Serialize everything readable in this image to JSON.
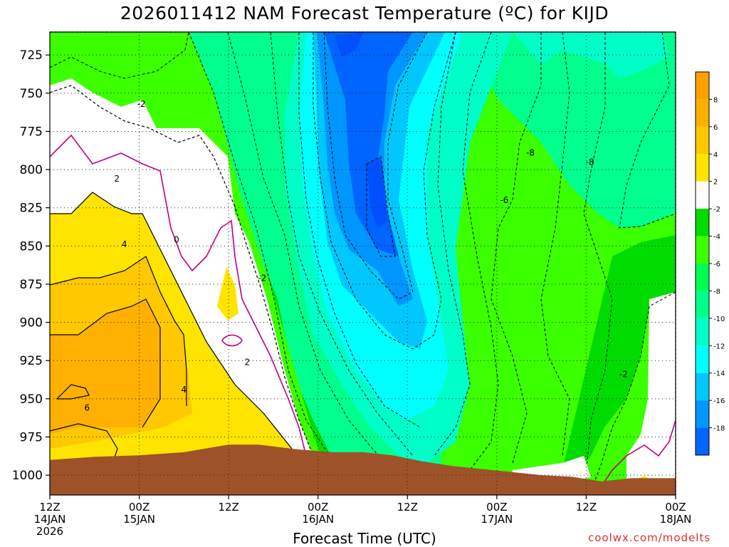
{
  "title": "2026011412 NAM Forecast Temperature (ºC) for KIJD",
  "credit": "coolwx.com/modelts",
  "chart_data": {
    "type": "heatmap",
    "title": "2026011412 NAM Forecast Temperature (ºC) for KIJD",
    "xlabel": "Forecast Time (UTC)",
    "ylabel": "",
    "y_axis": {
      "label": "",
      "ticks": [
        725,
        750,
        775,
        800,
        825,
        850,
        875,
        900,
        925,
        950,
        975,
        1000
      ],
      "range": [
        1013,
        710
      ],
      "inverted": true
    },
    "x_axis": {
      "ticks": [
        {
          "top": "12Z",
          "mid": "14JAN",
          "bottom": "2026"
        },
        {
          "top": "00Z",
          "mid": "15JAN",
          "bottom": ""
        },
        {
          "top": "12Z",
          "mid": "",
          "bottom": ""
        },
        {
          "top": "00Z",
          "mid": "16JAN",
          "bottom": ""
        },
        {
          "top": "12Z",
          "mid": "",
          "bottom": ""
        },
        {
          "top": "00Z",
          "mid": "17JAN",
          "bottom": ""
        },
        {
          "top": "12Z",
          "mid": "",
          "bottom": ""
        },
        {
          "top": "00Z",
          "mid": "18JAN",
          "bottom": ""
        }
      ],
      "range_hours": [
        0,
        84
      ]
    },
    "grid": true,
    "colorbar": {
      "levels": [
        8,
        6,
        4,
        2,
        -2,
        -4,
        -6,
        -8,
        -10,
        -12,
        -14,
        -16,
        -18
      ],
      "colors": [
        "#ffa000",
        "#ffb000",
        "#ffc800",
        "#ffe400",
        "#ffffff",
        "#00dc00",
        "#3cff00",
        "#00ff50",
        "#00ff8c",
        "#00ffc8",
        "#00ffff",
        "#00c8ff",
        "#0096ff",
        "#0064ff"
      ]
    },
    "contour_labels": [
      {
        "text": "-2",
        "hour": 12.3,
        "pressure": 757
      },
      {
        "text": "2",
        "hour": 9.0,
        "pressure": 806
      },
      {
        "text": "0",
        "hour": 17.0,
        "pressure": 846
      },
      {
        "text": "4",
        "hour": 10.0,
        "pressure": 849
      },
      {
        "text": "-2",
        "hour": 28.5,
        "pressure": 871
      },
      {
        "text": "2",
        "hour": 26.5,
        "pressure": 926
      },
      {
        "text": "4",
        "hour": 18.0,
        "pressure": 944
      },
      {
        "text": "6",
        "hour": 5.0,
        "pressure": 956
      },
      {
        "text": "-8",
        "hour": 64.5,
        "pressure": 789
      },
      {
        "text": "-8",
        "hour": 72.5,
        "pressure": 795
      },
      {
        "text": "-6",
        "hour": 61.0,
        "pressure": 820
      },
      {
        "text": "-2",
        "hour": 77.0,
        "pressure": 934
      }
    ],
    "terrain": {
      "color": "#9e5229",
      "surface_pressure": [
        {
          "hour": 0,
          "pressure": 990
        },
        {
          "hour": 6,
          "pressure": 988
        },
        {
          "hour": 12,
          "pressure": 987
        },
        {
          "hour": 18,
          "pressure": 985
        },
        {
          "hour": 24,
          "pressure": 980
        },
        {
          "hour": 28,
          "pressure": 980
        },
        {
          "hour": 33,
          "pressure": 983
        },
        {
          "hour": 38,
          "pressure": 985
        },
        {
          "hour": 42,
          "pressure": 985
        },
        {
          "hour": 46,
          "pressure": 987
        },
        {
          "hour": 50,
          "pressure": 991
        },
        {
          "hour": 54,
          "pressure": 994
        },
        {
          "hour": 58,
          "pressure": 996
        },
        {
          "hour": 62,
          "pressure": 998
        },
        {
          "hour": 66,
          "pressure": 1000
        },
        {
          "hour": 70,
          "pressure": 1001
        },
        {
          "hour": 74,
          "pressure": 1004
        },
        {
          "hour": 78,
          "pressure": 1002
        },
        {
          "hour": 84,
          "pressure": 1002
        }
      ]
    }
  }
}
